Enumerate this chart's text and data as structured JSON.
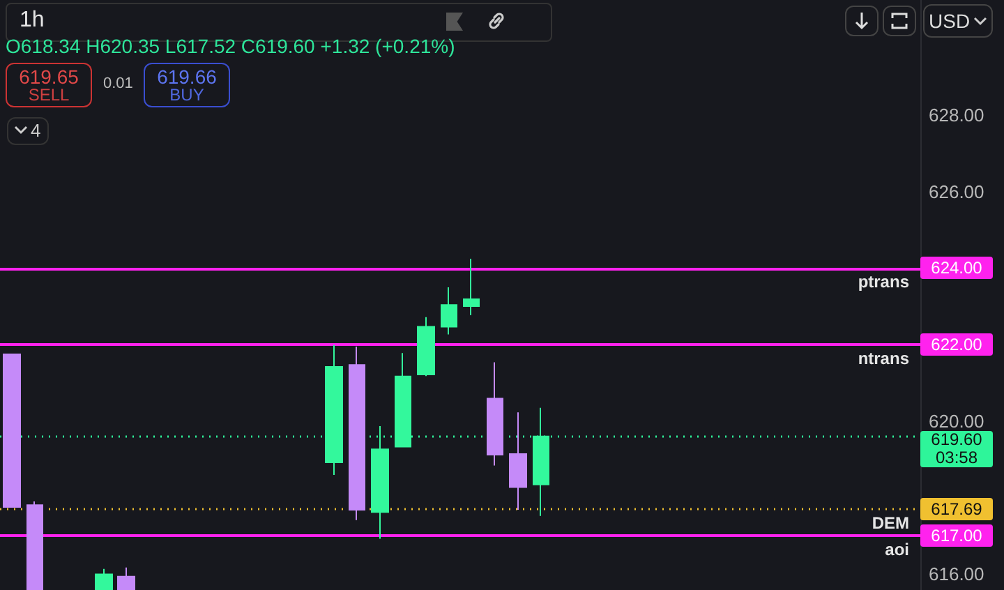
{
  "chart_data": {
    "type": "candlestick",
    "title": "1h",
    "subtitle": "O618.34 H620.35 L617.52 C619.60 +1.32 (+0.21%)",
    "annotations": [
      "619.65",
      "SELL",
      "0.01",
      "619.66",
      "BUY",
      "4",
      "USD",
      "03:58",
      {
        "text": "ptrans",
        "y": 624
      },
      {
        "text": "ntrans",
        "y": 622
      },
      {
        "text": "DEM",
        "y": 617.69
      },
      {
        "text": "aoi",
        "y": 617
      }
    ],
    "categories": [
      null,
      null,
      null,
      null,
      null,
      null,
      null,
      null,
      null,
      null,
      null,
      null,
      null,
      null,
      null,
      null,
      null,
      null,
      null,
      null,
      null,
      null,
      null,
      null,
      null,
      null,
      null,
      null,
      null,
      null,
      null,
      null,
      null,
      null,
      null,
      null,
      null,
      null,
      null,
      null
    ],
    "ohlc": [
      [
        621.75,
        621.75,
        617.75,
        617.75
      ],
      [
        617.8,
        617.9,
        615.6,
        615.6
      ],
      null,
      null,
      [
        615.6,
        616.13,
        615.6,
        615.99
      ],
      [
        615.93,
        616.17,
        615.6,
        615.6
      ],
      null,
      null,
      null,
      null,
      null,
      null,
      null,
      null,
      [
        618.92,
        621.99,
        618.59,
        621.42
      ],
      [
        621.47,
        621.95,
        617.41,
        617.68
      ],
      [
        617.62,
        619.87,
        616.92,
        619.26
      ],
      [
        619.33,
        621.78,
        619.33,
        621.17
      ],
      [
        621.22,
        622.72,
        621.18,
        622.47
      ],
      [
        622.47,
        623.5,
        622.27,
        623.04
      ],
      [
        623.01,
        624.25,
        622.77,
        623.19
      ],
      [
        620.59,
        621.54,
        618.84,
        619.12
      ],
      [
        619.14,
        620.23,
        617.68,
        618.27
      ],
      [
        618.34,
        620.35,
        617.52,
        619.6
      ],
      null,
      null,
      null,
      null,
      null,
      null,
      null,
      null,
      null,
      null,
      null,
      null,
      null,
      null,
      null,
      null
    ],
    "colors": [
      "#c58af9",
      "#c58af9",
      null,
      null,
      "#33f89c",
      "#c58af9",
      null,
      null,
      null,
      null,
      null,
      null,
      null,
      null,
      "#33f89c",
      "#c58af9",
      "#33f89c",
      "#33f89c",
      "#33f89c",
      "#33f89c",
      "#33f89c",
      "#c58af9",
      "#c58af9",
      "#33f89c",
      null,
      null,
      null,
      null,
      null,
      null,
      null,
      null,
      null,
      null,
      null,
      null,
      null,
      null,
      null,
      null
    ],
    "ylim": [
      615.58,
      631.02
    ],
    "yticks": [
      {
        "value": 616,
        "label": "616.00"
      },
      {
        "value": 620,
        "label": "620.00"
      },
      {
        "value": 626,
        "label": "626.00"
      },
      {
        "value": 628,
        "label": "628.00"
      }
    ],
    "ref_lines": [
      {
        "axis": "y",
        "value": 624,
        "label": "624.00",
        "color": "#ff22ee",
        "line_style": "solid"
      },
      {
        "axis": "y",
        "value": 622,
        "label": "622.00",
        "color": "#ff22ee",
        "line_style": "solid"
      },
      {
        "axis": "y",
        "value": 617,
        "label": "617.00",
        "color": "#ff22ee",
        "line_style": "solid"
      },
      {
        "axis": "y",
        "value": 619.6,
        "label": "619.60",
        "color": "#2ef59a",
        "line_style": "dotted"
      },
      {
        "axis": "y",
        "value": 617.69,
        "label": "617.69",
        "color": "#f0c030",
        "line_style": "dotted"
      }
    ],
    "grid": false
  }
}
